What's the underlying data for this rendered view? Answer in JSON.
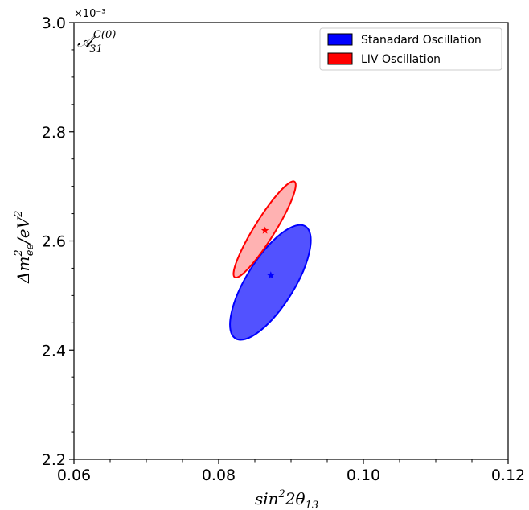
{
  "chart_data": {
    "type": "scatter",
    "xlim": [
      0.06,
      0.12
    ],
    "ylim": [
      2.2,
      3.0
    ],
    "x_ticks": [
      "0.06",
      "0.08",
      "0.10",
      "0.12"
    ],
    "y_ticks": [
      "2.2",
      "2.4",
      "2.6",
      "2.8",
      "3.0"
    ],
    "y_offset_label": "×10⁻³",
    "xlabel": {
      "base": "sin",
      "sup1": "2",
      "mid": "2θ",
      "sub": "13"
    },
    "ylabel": {
      "delta": "Δm",
      "sup": "2",
      "sub": "ee",
      "tail": "/eV",
      "sup2": "2"
    },
    "annotation": {
      "base": "𝒜",
      "sup": "C(0)",
      "sub": "31"
    },
    "legend": {
      "placement": "top-right"
    },
    "series": [
      {
        "name": "Stanadard Oscillation",
        "fill": "#0000ff",
        "stroke": "#0000ff",
        "fill_opacity": 0.68,
        "best_fit": {
          "x": 0.0872,
          "y": 2.537
        },
        "contour_extent": {
          "x": [
            0.0832,
            0.0911
          ],
          "y": [
            2.424,
            2.624
          ]
        },
        "tilt_deg": -58
      },
      {
        "name": "LIV Oscillation",
        "fill": "#ff0000",
        "stroke": "#ff0000",
        "fill_opacity": 0.3,
        "best_fit": {
          "x": 0.0864,
          "y": 2.619
        },
        "contour_extent": {
          "x": [
            0.0824,
            0.0903
          ],
          "y": [
            2.534,
            2.708
          ]
        },
        "tilt_deg": -58
      }
    ]
  }
}
